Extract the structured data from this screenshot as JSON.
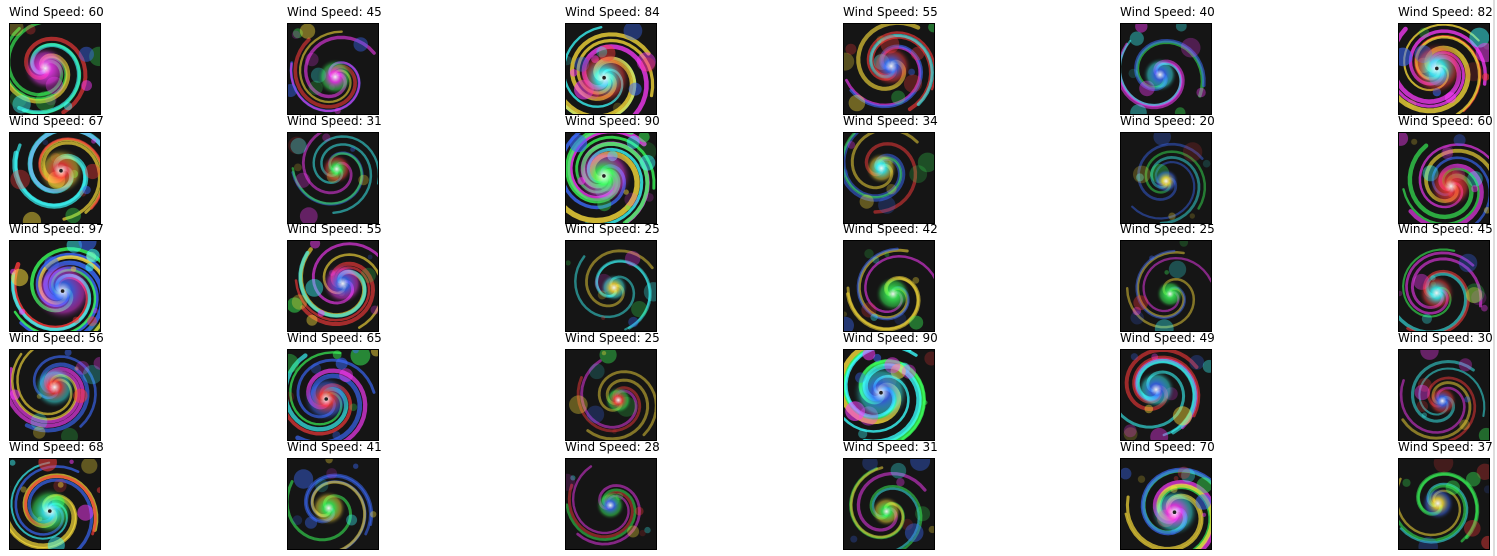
{
  "label_prefix": "Wind Speed: ",
  "rows": [
    [
      60,
      45,
      84,
      55,
      40,
      82
    ],
    [
      67,
      31,
      90,
      34,
      20,
      60
    ],
    [
      97,
      55,
      25,
      42,
      25,
      45
    ],
    [
      56,
      65,
      25,
      90,
      49,
      30
    ],
    [
      68,
      41,
      28,
      31,
      70,
      37
    ]
  ],
  "colors": {
    "background": "#ffffff",
    "thumb_background": "#111111",
    "title_text": "#000000"
  }
}
